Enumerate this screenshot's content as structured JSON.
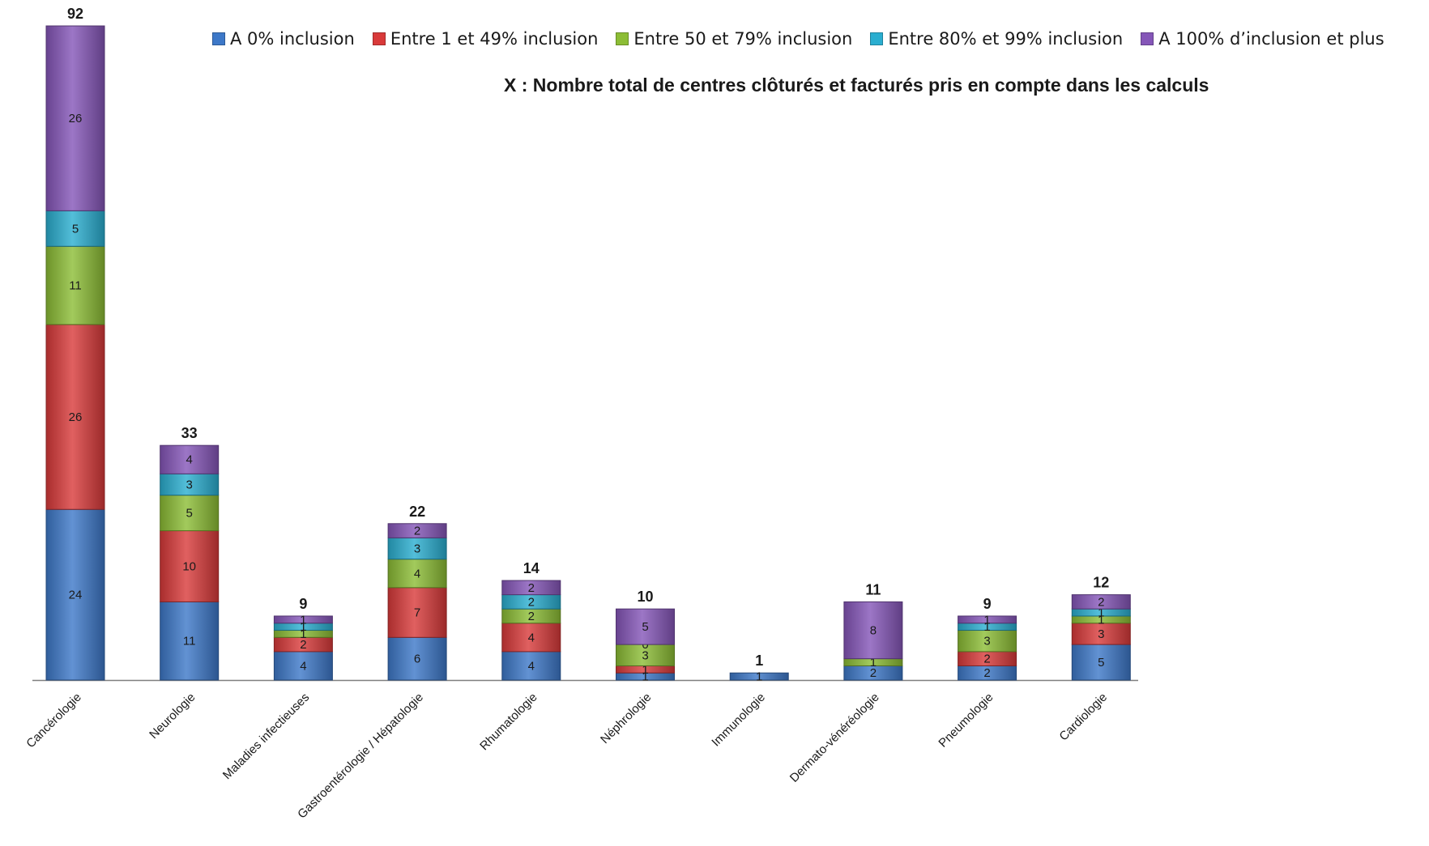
{
  "chart_data": {
    "type": "bar",
    "stacked": true,
    "categories": [
      "Cancérologie",
      "Neurologie",
      "Maladies infectieuses",
      "Gastroentérologie / Hépatologie",
      "Rhumatologie",
      "Néphrologie",
      "Immunologie",
      "Dermato-vénéréologie",
      "Pneumologie",
      "Cardiologie"
    ],
    "series": [
      {
        "name": "A 0% inclusion",
        "color": "#3d78c8",
        "values": [
          24,
          11,
          4,
          6,
          4,
          1,
          1,
          2,
          2,
          5
        ]
      },
      {
        "name": "Entre 1 et 49% inclusion",
        "color": "#d93a3a",
        "values": [
          26,
          10,
          2,
          7,
          4,
          1,
          0,
          0,
          2,
          3
        ]
      },
      {
        "name": "Entre 50 et 79% inclusion",
        "color": "#8cbd35",
        "values": [
          11,
          5,
          1,
          4,
          2,
          3,
          0,
          1,
          3,
          1
        ]
      },
      {
        "name": "Entre 80% et 99% inclusion",
        "color": "#2aaed0",
        "values": [
          5,
          3,
          1,
          3,
          2,
          0,
          0,
          0,
          1,
          1
        ]
      },
      {
        "name": "A 100% d’inclusion et plus",
        "color": "#8556b8",
        "values": [
          26,
          4,
          1,
          2,
          2,
          5,
          0,
          8,
          1,
          2
        ]
      }
    ],
    "segment_labels": [
      [
        "24",
        "26",
        "11",
        "5",
        "26"
      ],
      [
        "11",
        "10",
        "5",
        "3",
        "4"
      ],
      [
        "4",
        "2",
        "1",
        "1",
        "1"
      ],
      [
        "6",
        "7",
        "4",
        "3",
        "2"
      ],
      [
        "4",
        "4",
        "2",
        "2",
        "2"
      ],
      [
        "1",
        "1",
        "3",
        "0",
        "5"
      ],
      [
        "1",
        "",
        "",
        "",
        ""
      ],
      [
        "2",
        "",
        "1",
        "",
        "8"
      ],
      [
        "2",
        "2",
        "3",
        "1",
        "1"
      ],
      [
        "5",
        "3",
        "1",
        "1",
        "2"
      ]
    ],
    "totals": [
      92,
      33,
      9,
      22,
      14,
      10,
      1,
      11,
      9,
      12
    ],
    "ylim": [
      0,
      92
    ],
    "grid": false,
    "legend_position": "top",
    "annotation": "X : Nombre total de centres clôturés et facturés pris en compte dans les calculs"
  }
}
